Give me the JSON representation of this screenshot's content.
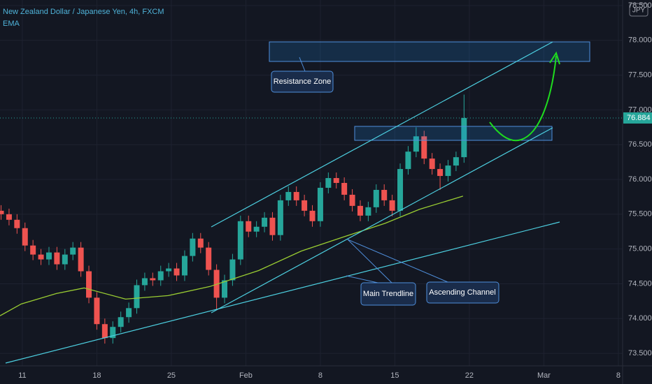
{
  "chart_data": {
    "type": "candlestick",
    "title": "New Zealand Dollar / Japanese Yen, 4h, FXCM",
    "indicator": "EMA",
    "currency": "JPY",
    "up_color": "#26a69a",
    "down_color": "#ef5350",
    "grid": true,
    "x": [
      9.0,
      9.75,
      10.5,
      11.25,
      12.0,
      12.75,
      13.5,
      14.25,
      15.0,
      15.75,
      16.5,
      17.25,
      18.0,
      18.75,
      19.5,
      20.25,
      21.0,
      21.75,
      22.5,
      23.25,
      24.0,
      24.75,
      25.5,
      26.25,
      27.0,
      27.75,
      28.5,
      29.25,
      30.0,
      30.75,
      31.5,
      32.25,
      33.0,
      33.75,
      34.5,
      35.25,
      36.0,
      36.75,
      37.5,
      38.25,
      39.0,
      39.75,
      40.5,
      41.25,
      42.0,
      42.75,
      43.5,
      44.25,
      45.0,
      45.75,
      46.5,
      47.25,
      48.0,
      48.75,
      49.5,
      50.25,
      51.0,
      51.75,
      52.5
    ],
    "open": [
      75.55,
      75.5,
      75.42,
      75.3,
      75.05,
      74.92,
      74.85,
      74.95,
      74.78,
      74.92,
      75.02,
      74.68,
      74.3,
      73.92,
      73.72,
      73.88,
      74.02,
      74.15,
      74.48,
      74.58,
      74.55,
      74.68,
      74.72,
      74.62,
      74.9,
      75.15,
      75.02,
      74.7,
      74.3,
      74.55,
      74.85,
      75.4,
      75.25,
      75.32,
      75.45,
      75.2,
      75.7,
      75.82,
      75.7,
      75.55,
      75.4,
      75.88,
      76.02,
      75.95,
      75.78,
      75.62,
      75.48,
      75.6,
      75.85,
      75.7,
      75.55,
      76.15,
      76.4,
      76.62,
      76.3,
      76.15,
      76.05,
      76.2,
      76.32
    ],
    "high": [
      75.63,
      75.58,
      75.5,
      75.38,
      75.13,
      75.0,
      75.03,
      75.03,
      75.0,
      75.1,
      75.1,
      74.76,
      74.38,
      74.0,
      73.96,
      74.1,
      74.23,
      74.56,
      74.66,
      74.66,
      74.76,
      74.8,
      74.8,
      74.98,
      75.23,
      75.23,
      75.1,
      74.78,
      74.63,
      74.93,
      75.48,
      75.48,
      75.4,
      75.53,
      75.53,
      75.78,
      75.9,
      75.9,
      75.78,
      75.63,
      75.96,
      76.1,
      76.1,
      76.03,
      75.86,
      75.7,
      75.68,
      75.93,
      75.93,
      75.78,
      76.23,
      76.48,
      76.75,
      76.7,
      76.38,
      76.23,
      76.28,
      76.4,
      77.22
    ],
    "low": [
      75.42,
      75.34,
      75.22,
      74.97,
      74.84,
      74.77,
      74.77,
      74.7,
      74.7,
      74.84,
      74.6,
      74.22,
      73.84,
      73.64,
      73.64,
      73.8,
      73.94,
      74.07,
      74.4,
      74.47,
      74.47,
      74.6,
      74.54,
      74.54,
      74.82,
      74.94,
      74.62,
      74.12,
      74.22,
      74.47,
      74.77,
      75.17,
      75.17,
      75.24,
      75.12,
      75.12,
      75.62,
      75.62,
      75.47,
      75.32,
      75.32,
      75.8,
      75.87,
      75.7,
      75.54,
      75.4,
      75.4,
      75.52,
      75.62,
      75.47,
      75.47,
      76.07,
      76.32,
      76.22,
      76.07,
      75.85,
      75.97,
      76.12,
      76.24
    ],
    "close": [
      75.5,
      75.42,
      75.3,
      75.05,
      74.92,
      74.85,
      74.95,
      74.78,
      74.92,
      75.02,
      74.68,
      74.3,
      73.92,
      73.72,
      73.88,
      74.02,
      74.15,
      74.48,
      74.58,
      74.55,
      74.68,
      74.72,
      74.62,
      74.9,
      75.15,
      75.02,
      74.7,
      74.3,
      74.55,
      74.85,
      75.4,
      75.25,
      75.32,
      75.45,
      75.2,
      75.7,
      75.82,
      75.7,
      75.55,
      75.4,
      75.88,
      76.02,
      75.95,
      75.78,
      75.62,
      75.48,
      75.6,
      75.85,
      75.7,
      75.55,
      76.15,
      76.4,
      76.62,
      76.3,
      76.15,
      76.05,
      76.2,
      76.32,
      76.884
    ],
    "ema": {
      "color": "#9acd32",
      "x": [
        8.9,
        10.9,
        14.2,
        16.8,
        20.7,
        24.7,
        28.6,
        33.2,
        37.2,
        41.1,
        45.1,
        48.3,
        52.4
      ],
      "values": [
        74.04,
        74.21,
        74.36,
        74.44,
        74.28,
        74.33,
        74.46,
        74.69,
        74.97,
        75.17,
        75.37,
        75.57,
        75.76
      ]
    },
    "last_price": 76.884,
    "annotations": [
      "Resistance Zone",
      "Main Trendline",
      "Ascending Channel"
    ],
    "xlim": [
      8.9,
      67.4
    ],
    "xticks": [
      11,
      18,
      25,
      {
        "value": 32,
        "label": "Feb"
      },
      {
        "value": 39,
        "label": "8"
      },
      {
        "value": 46,
        "label": "15"
      },
      {
        "value": 53,
        "label": "22"
      },
      {
        "value": 60,
        "label": "Mar"
      },
      {
        "value": 67,
        "label": "8"
      }
    ],
    "ylim": [
      73.32,
      78.58
    ],
    "yticks": [
      {
        "value": 73.5,
        "label": "73.500"
      },
      {
        "value": 74,
        "label": "74.000"
      },
      {
        "value": 74.5,
        "label": "74.500"
      },
      {
        "value": 75,
        "label": "75.000"
      },
      {
        "value": 75.5,
        "label": "75.500"
      },
      {
        "value": 76,
        "label": "76.000"
      },
      {
        "value": 76.5,
        "label": "76.500"
      },
      {
        "value": 77,
        "label": "77.000"
      },
      {
        "value": 77.5,
        "label": "77.500"
      },
      {
        "value": 78,
        "label": "78.000"
      },
      {
        "value": 78.5,
        "label": "78.500"
      }
    ]
  }
}
